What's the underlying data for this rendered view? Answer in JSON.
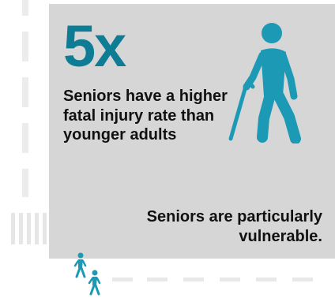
{
  "stat": {
    "value": "5x",
    "description": "Seniors have a higher fatal injury rate than younger adults"
  },
  "note": "Seniors  are particularly vulnerable.",
  "icons": {
    "main": "senior-with-cane-icon",
    "small_1": "pedestrian-icon",
    "small_2": "pedestrian-icon"
  },
  "colors": {
    "accent": "#0e7c94",
    "icon": "#1c9ab5",
    "panel": "#d6d6d6",
    "text": "#111111"
  }
}
